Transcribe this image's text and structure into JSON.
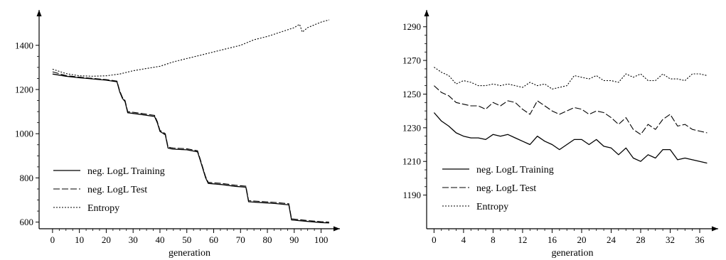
{
  "chart_data": [
    {
      "type": "line",
      "title": "",
      "xlabel": "generation",
      "ylabel": "",
      "xlim": [
        -5,
        107
      ],
      "ylim": [
        570,
        1560
      ],
      "xticks": [
        0,
        10,
        20,
        30,
        40,
        50,
        60,
        70,
        80,
        90,
        100
      ],
      "yticks": [
        600,
        800,
        1000,
        1200,
        1400
      ],
      "grid": false,
      "legend_position": "bottom-left",
      "series": [
        {
          "name": "neg. LogL Training",
          "style": "solid",
          "x": [
            0,
            5,
            10,
            15,
            20,
            24,
            25,
            26,
            27,
            28,
            33,
            38,
            39,
            40,
            41,
            42,
            43,
            44,
            45,
            50,
            54,
            55,
            56,
            57,
            58,
            63,
            68,
            72,
            73,
            78,
            83,
            88,
            89,
            95,
            100,
            103
          ],
          "y": [
            1270,
            1260,
            1253,
            1248,
            1242,
            1235,
            1190,
            1160,
            1145,
            1095,
            1087,
            1078,
            1050,
            1010,
            1003,
            995,
            935,
            932,
            930,
            927,
            918,
            880,
            840,
            800,
            775,
            770,
            762,
            758,
            692,
            688,
            684,
            678,
            610,
            603,
            598,
            596
          ]
        },
        {
          "name": "neg. LogL Test",
          "style": "dash",
          "x": [
            0,
            5,
            10,
            15,
            20,
            24,
            25,
            26,
            27,
            28,
            33,
            38,
            39,
            40,
            41,
            42,
            43,
            44,
            45,
            50,
            54,
            55,
            56,
            57,
            58,
            63,
            68,
            72,
            73,
            78,
            83,
            88,
            89,
            95,
            100,
            103
          ],
          "y": [
            1280,
            1263,
            1256,
            1250,
            1245,
            1238,
            1195,
            1165,
            1150,
            1100,
            1092,
            1083,
            1055,
            1015,
            1008,
            1000,
            940,
            937,
            935,
            932,
            923,
            885,
            845,
            805,
            780,
            775,
            767,
            763,
            697,
            693,
            689,
            683,
            615,
            607,
            602,
            600
          ]
        },
        {
          "name": "Entropy",
          "style": "dot",
          "x": [
            0,
            5,
            10,
            15,
            20,
            25,
            30,
            35,
            40,
            45,
            50,
            55,
            60,
            65,
            70,
            75,
            80,
            85,
            90,
            92,
            93,
            95,
            100,
            103
          ],
          "y": [
            1292,
            1272,
            1262,
            1260,
            1262,
            1270,
            1285,
            1295,
            1305,
            1325,
            1340,
            1355,
            1370,
            1385,
            1400,
            1425,
            1440,
            1460,
            1480,
            1495,
            1460,
            1480,
            1505,
            1515
          ]
        }
      ]
    },
    {
      "type": "line",
      "title": "",
      "xlabel": "generation",
      "ylabel": "",
      "xlim": [
        -1,
        38.5
      ],
      "ylim": [
        1170,
        1300
      ],
      "xticks": [
        0,
        4,
        8,
        12,
        16,
        20,
        24,
        28,
        32,
        36
      ],
      "yticks": [
        1190,
        1210,
        1230,
        1250,
        1270,
        1290
      ],
      "grid": false,
      "legend_position": "bottom-left",
      "series": [
        {
          "name": "neg. LogL Training",
          "style": "solid",
          "x": [
            0,
            1,
            2,
            3,
            4,
            5,
            6,
            7,
            8,
            9,
            10,
            11,
            12,
            13,
            14,
            15,
            16,
            17,
            18,
            19,
            20,
            21,
            22,
            23,
            24,
            25,
            26,
            27,
            28,
            29,
            30,
            31,
            32,
            33,
            34,
            35,
            36,
            37
          ],
          "y": [
            1239,
            1234,
            1231,
            1227,
            1225,
            1224,
            1224,
            1223,
            1226,
            1225,
            1226,
            1224,
            1222,
            1220,
            1225,
            1222,
            1220,
            1217,
            1220,
            1223,
            1223,
            1220,
            1223,
            1219,
            1218,
            1214,
            1218,
            1212,
            1210,
            1214,
            1212,
            1217,
            1217,
            1211,
            1212,
            1211,
            1210,
            1209
          ]
        },
        {
          "name": "neg. LogL Test",
          "style": "dash",
          "x": [
            0,
            1,
            2,
            3,
            4,
            5,
            6,
            7,
            8,
            9,
            10,
            11,
            12,
            13,
            14,
            15,
            16,
            17,
            18,
            19,
            20,
            21,
            22,
            23,
            24,
            25,
            26,
            27,
            28,
            29,
            30,
            31,
            32,
            33,
            34,
            35,
            36,
            37
          ],
          "y": [
            1255,
            1251,
            1249,
            1245,
            1244,
            1243,
            1243,
            1241,
            1245,
            1243,
            1246,
            1245,
            1241,
            1238,
            1246,
            1243,
            1240,
            1238,
            1240,
            1242,
            1241,
            1238,
            1240,
            1239,
            1236,
            1232,
            1236,
            1229,
            1226,
            1232,
            1229,
            1235,
            1238,
            1231,
            1232,
            1229,
            1228,
            1227
          ]
        },
        {
          "name": "Entropy",
          "style": "dot",
          "x": [
            0,
            1,
            2,
            3,
            4,
            5,
            6,
            7,
            8,
            9,
            10,
            11,
            12,
            13,
            14,
            15,
            16,
            17,
            18,
            19,
            20,
            21,
            22,
            23,
            24,
            25,
            26,
            27,
            28,
            29,
            30,
            31,
            32,
            33,
            34,
            35,
            36,
            37
          ],
          "y": [
            1266,
            1263,
            1261,
            1256,
            1258,
            1257,
            1255,
            1255,
            1256,
            1255,
            1256,
            1255,
            1254,
            1257,
            1255,
            1256,
            1253,
            1254,
            1255,
            1261,
            1260,
            1259,
            1261,
            1258,
            1258,
            1257,
            1262,
            1260,
            1262,
            1258,
            1258,
            1262,
            1259,
            1259,
            1258,
            1262,
            1262,
            1261
          ]
        }
      ]
    }
  ]
}
